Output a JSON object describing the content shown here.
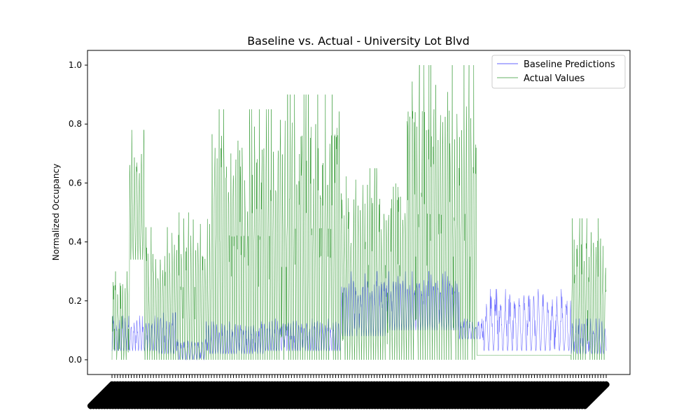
{
  "chart_data": {
    "type": "line",
    "title": "Baseline vs. Actual - University Lot Blvd",
    "xlabel": "",
    "ylabel": "Normalized Occupancy",
    "ylim": [
      -0.05,
      1.05
    ],
    "x_count": 1680,
    "yticks": [
      "0.0",
      "0.2",
      "0.4",
      "0.6",
      "0.8",
      "1.0"
    ],
    "ytick_values": [
      0.0,
      0.2,
      0.4,
      0.6,
      0.8,
      1.0
    ],
    "grid": false,
    "legend_position": "top-right",
    "series": [
      {
        "name": "Baseline Predictions",
        "color": "#0000ff",
        "segments": [
          {
            "from": 0,
            "to": 160,
            "low": 0.03,
            "high": 0.15,
            "period": 10
          },
          {
            "from": 160,
            "to": 220,
            "low": 0.02,
            "high": 0.16,
            "period": 10
          },
          {
            "from": 220,
            "to": 320,
            "low": 0.0,
            "high": 0.07,
            "period": 12
          },
          {
            "from": 320,
            "to": 520,
            "low": 0.02,
            "high": 0.13,
            "period": 9
          },
          {
            "from": 520,
            "to": 780,
            "low": 0.03,
            "high": 0.14,
            "period": 9
          },
          {
            "from": 780,
            "to": 930,
            "low": 0.08,
            "high": 0.3,
            "period": 8
          },
          {
            "from": 930,
            "to": 1180,
            "low": 0.1,
            "high": 0.3,
            "period": 8
          },
          {
            "from": 1180,
            "to": 1260,
            "low": 0.07,
            "high": 0.14,
            "period": 10
          },
          {
            "from": 1260,
            "to": 1560,
            "low": 0.03,
            "high": 0.24,
            "period": 16
          },
          {
            "from": 1560,
            "to": 1680,
            "low": 0.02,
            "high": 0.14,
            "period": 10
          }
        ]
      },
      {
        "name": "Actual Values",
        "color": "#008000",
        "segments": [
          {
            "from": 0,
            "to": 60,
            "low": 0.0,
            "high": 0.3,
            "period": 8
          },
          {
            "from": 60,
            "to": 110,
            "low": 0.34,
            "high": 0.78,
            "period": 8
          },
          {
            "from": 110,
            "to": 200,
            "low": 0.0,
            "high": 0.45,
            "period": 8
          },
          {
            "from": 200,
            "to": 340,
            "low": 0.0,
            "high": 0.5,
            "period": 8
          },
          {
            "from": 340,
            "to": 560,
            "low": 0.0,
            "high": 0.85,
            "period": 8
          },
          {
            "from": 560,
            "to": 780,
            "low": 0.0,
            "high": 0.9,
            "period": 8
          },
          {
            "from": 780,
            "to": 1000,
            "low": 0.0,
            "high": 0.65,
            "period": 8
          },
          {
            "from": 1000,
            "to": 1240,
            "low": 0.0,
            "high": 1.0,
            "period": 8
          },
          {
            "from": 1240,
            "to": 1560,
            "low": 0.015,
            "high": 0.015,
            "period": 8
          },
          {
            "from": 1560,
            "to": 1680,
            "low": 0.0,
            "high": 0.48,
            "period": 8
          }
        ]
      }
    ]
  }
}
